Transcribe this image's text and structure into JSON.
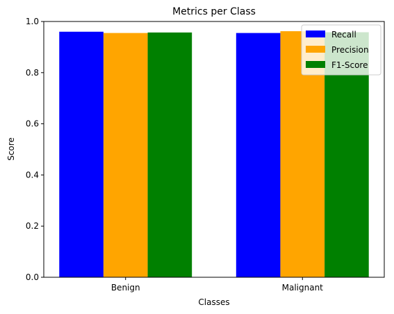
{
  "chart_data": {
    "type": "bar",
    "title": "Metrics per Class",
    "xlabel": "Classes",
    "ylabel": "Score",
    "categories": [
      "Benign",
      "Malignant"
    ],
    "series": [
      {
        "name": "Recall",
        "values": [
          0.96,
          0.955
        ],
        "color": "#0000ff"
      },
      {
        "name": "Precision",
        "values": [
          0.955,
          0.962
        ],
        "color": "#ffa500"
      },
      {
        "name": "F1-Score",
        "values": [
          0.957,
          0.958
        ],
        "color": "#008000"
      }
    ],
    "ylim": [
      0,
      1.0
    ],
    "yticks": [
      "0.0",
      "0.2",
      "0.4",
      "0.6",
      "0.8",
      "1.0"
    ],
    "grid": false,
    "legend_position": "top-right"
  }
}
